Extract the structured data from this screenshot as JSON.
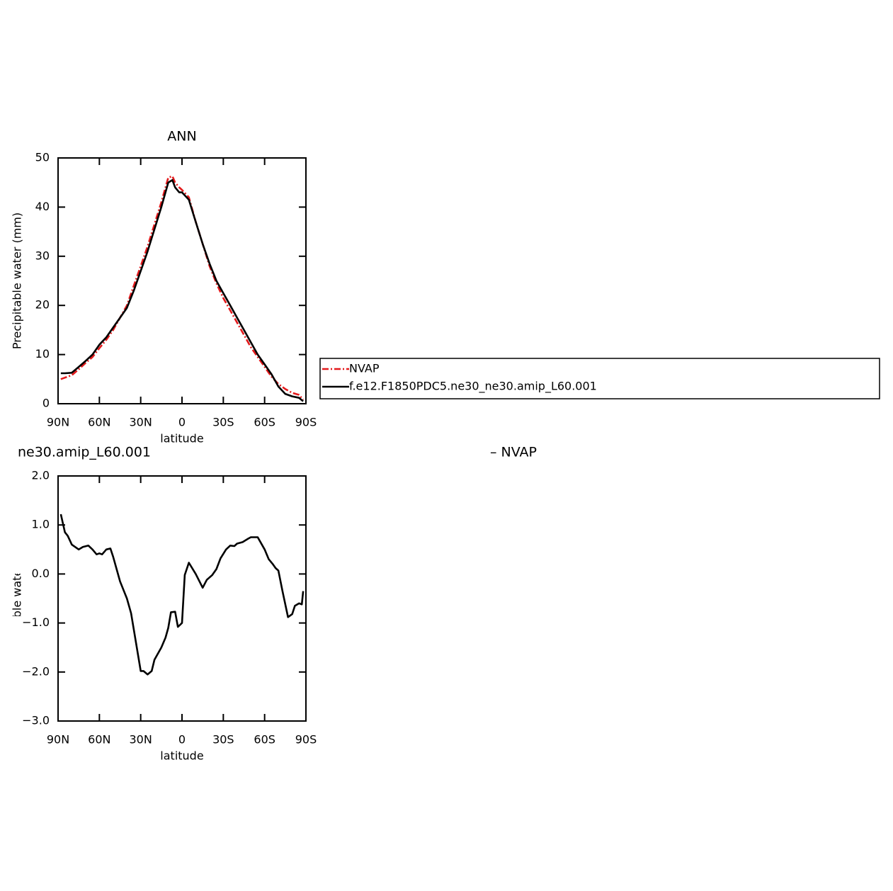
{
  "chart_data": [
    {
      "type": "line",
      "title": "ANN",
      "xlabel": "latitude",
      "ylabel": "Precipitable water (mm)",
      "x": [
        88,
        85,
        80,
        75,
        70,
        65,
        60,
        55,
        50,
        45,
        40,
        35,
        30,
        25,
        20,
        15,
        10,
        7,
        5,
        2,
        0,
        -5,
        -10,
        -15,
        -20,
        -25,
        -30,
        -35,
        -40,
        -45,
        -50,
        -55,
        -60,
        -65,
        -70,
        -75,
        -80,
        -85,
        -88
      ],
      "series": [
        {
          "name": "NVAP",
          "color": "#e31a1c",
          "linestyle": "dashed",
          "values": [
            5,
            5.3,
            5.8,
            7,
            8.3,
            9.5,
            11.3,
            13,
            15,
            17.5,
            20,
            24,
            28,
            32,
            36.5,
            41,
            46,
            46.3,
            45,
            44,
            43.5,
            42,
            37,
            32.5,
            28,
            24.5,
            21.5,
            19,
            16.5,
            14,
            11.5,
            9.5,
            7.5,
            5.5,
            4,
            3,
            2.2,
            1.8,
            0.8
          ]
        },
        {
          "name": "f.e12.F1850PDC5.ne30_ne30.amip_L60.001",
          "color": "#000000",
          "linestyle": "solid",
          "values": [
            6.2,
            6.2,
            6.3,
            7.5,
            8.7,
            10,
            12,
            13.5,
            15.5,
            17.5,
            19.5,
            23,
            27,
            31,
            35.5,
            40,
            45,
            45.5,
            44,
            43,
            43,
            41.5,
            37,
            32.5,
            28.5,
            25,
            22.5,
            20,
            17.5,
            15,
            12.5,
            10,
            8,
            6,
            3.5,
            2,
            1.5,
            1.2,
            0.5
          ]
        }
      ],
      "xlim": [
        90,
        -90
      ],
      "xticks": [
        {
          "value": 90,
          "label": "90N"
        },
        {
          "value": 60,
          "label": "60N"
        },
        {
          "value": 30,
          "label": "30N"
        },
        0,
        {
          "value": -30,
          "label": "30S"
        },
        {
          "value": -60,
          "label": "60S"
        },
        {
          "value": -90,
          "label": "90S"
        }
      ],
      "ylim": [
        0,
        50
      ],
      "yticks": [
        0,
        10,
        20,
        30,
        40,
        50
      ],
      "legend": "right"
    },
    {
      "type": "line",
      "title_left": "ne30.amip_L60.001",
      "title_right": "–  NVAP",
      "xlabel": "latitude",
      "ylabel": "Precipitable water (mm)",
      "x": [
        88,
        85,
        83,
        80,
        75,
        72,
        68,
        65,
        62,
        60,
        58,
        55,
        52,
        50,
        47,
        45,
        40,
        37,
        30,
        28,
        25,
        22,
        20,
        15,
        12,
        10,
        8,
        5,
        3,
        0,
        -2,
        -5,
        -10,
        -15,
        -18,
        -22,
        -25,
        -28,
        -32,
        -35,
        -38,
        -40,
        -44,
        -48,
        -50,
        -55,
        -60,
        -63,
        -66,
        -68,
        -70,
        -73,
        -77,
        -80,
        -82,
        -85,
        -87,
        -88
      ],
      "values": [
        1.22,
        0.85,
        0.78,
        0.6,
        0.5,
        0.55,
        0.58,
        0.5,
        0.4,
        0.42,
        0.4,
        0.5,
        0.52,
        0.35,
        0.05,
        -0.15,
        -0.5,
        -0.8,
        -1.98,
        -1.98,
        -2.05,
        -1.98,
        -1.75,
        -1.5,
        -1.3,
        -1.1,
        -0.78,
        -0.77,
        -1.08,
        -1.0,
        -0.02,
        0.23,
        0.0,
        -0.28,
        -0.12,
        -0.02,
        0.1,
        0.32,
        0.5,
        0.58,
        0.57,
        0.62,
        0.65,
        0.72,
        0.75,
        0.75,
        0.5,
        0.3,
        0.2,
        0.12,
        0.07,
        -0.35,
        -0.88,
        -0.82,
        -0.65,
        -0.6,
        -0.62,
        -0.35
      ],
      "color": "#000000",
      "xlim": [
        90,
        -90
      ],
      "xticks": [
        {
          "value": 90,
          "label": "90N"
        },
        {
          "value": 60,
          "label": "60N"
        },
        {
          "value": 30,
          "label": "30N"
        },
        0,
        {
          "value": -30,
          "label": "30S"
        },
        {
          "value": -60,
          "label": "60S"
        },
        {
          "value": -90,
          "label": "90S"
        }
      ],
      "ylim": [
        -3,
        2
      ],
      "yticks": [
        {
          "value": 2,
          "label": "2.0"
        },
        {
          "value": 1,
          "label": "1.0"
        },
        {
          "value": 0,
          "label": "0.0"
        },
        {
          "value": -1,
          "label": "−1.0"
        },
        {
          "value": -2,
          "label": "−2.0"
        },
        {
          "value": -3,
          "label": "−3.0"
        }
      ]
    }
  ]
}
